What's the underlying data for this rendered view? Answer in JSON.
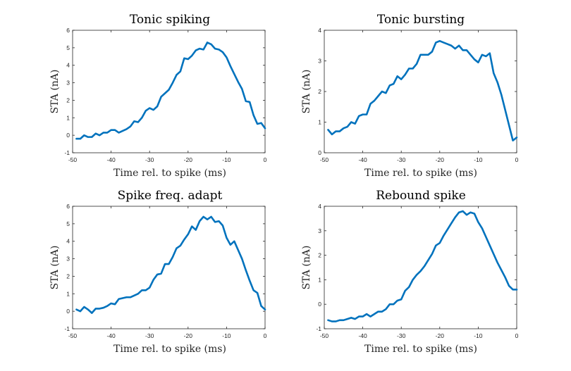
{
  "colors": {
    "line": "#0072BD",
    "axes": "#262626",
    "background": "#ffffff"
  },
  "chart_data": [
    {
      "type": "line",
      "title": "Tonic spiking",
      "xlabel": "Time rel. to spike (ms)",
      "ylabel": "STA (nA)",
      "xlim": [
        -50,
        0
      ],
      "ylim": [
        -1,
        6
      ],
      "xticks": [
        -50,
        -40,
        -30,
        -20,
        -10,
        0
      ],
      "yticks": [
        -1,
        0,
        1,
        2,
        3,
        4,
        5,
        6
      ],
      "grid": false,
      "x": [
        -49,
        -48,
        -47,
        -46,
        -45,
        -44,
        -43,
        -42,
        -41,
        -40,
        -39,
        -38,
        -37,
        -36,
        -35,
        -34,
        -33,
        -32,
        -31,
        -30,
        -29,
        -28,
        -27,
        -26,
        -25,
        -24,
        -23,
        -22,
        -21,
        -20,
        -19,
        -18,
        -17,
        -16,
        -15,
        -14,
        -13,
        -12,
        -11,
        -10,
        -9,
        -8,
        -7,
        -6,
        -5,
        -4,
        -3,
        -2,
        -1,
        0
      ],
      "y": [
        -0.2,
        -0.2,
        0.0,
        -0.1,
        -0.1,
        0.1,
        0.0,
        0.15,
        0.15,
        0.3,
        0.3,
        0.15,
        0.25,
        0.35,
        0.5,
        0.8,
        0.75,
        1.0,
        1.4,
        1.55,
        1.45,
        1.65,
        2.2,
        2.4,
        2.6,
        3.0,
        3.45,
        3.65,
        4.4,
        4.35,
        4.55,
        4.85,
        4.95,
        4.9,
        5.3,
        5.2,
        4.95,
        4.9,
        4.75,
        4.45,
        3.95,
        3.5,
        3.05,
        2.65,
        1.95,
        1.9,
        1.15,
        0.65,
        0.7,
        0.4
      ]
    },
    {
      "type": "line",
      "title": "Tonic bursting",
      "xlabel": "Time rel. to spike (ms)",
      "ylabel": "STA (nA)",
      "xlim": [
        -50,
        0
      ],
      "ylim": [
        0,
        4
      ],
      "xticks": [
        -50,
        -40,
        -30,
        -20,
        -10,
        0
      ],
      "yticks": [
        0,
        1,
        2,
        3,
        4
      ],
      "grid": false,
      "x": [
        -49,
        -48,
        -47,
        -46,
        -45,
        -44,
        -43,
        -42,
        -41,
        -40,
        -39,
        -38,
        -37,
        -36,
        -35,
        -34,
        -33,
        -32,
        -31,
        -30,
        -29,
        -28,
        -27,
        -26,
        -25,
        -24,
        -23,
        -22,
        -21,
        -20,
        -19,
        -18,
        -17,
        -16,
        -15,
        -14,
        -13,
        -12,
        -11,
        -10,
        -9,
        -8,
        -7,
        -6,
        -5,
        -4,
        -3,
        -2,
        -1,
        0
      ],
      "y": [
        0.75,
        0.6,
        0.7,
        0.7,
        0.8,
        0.85,
        1.0,
        0.95,
        1.2,
        1.25,
        1.25,
        1.6,
        1.7,
        1.85,
        2.0,
        1.95,
        2.2,
        2.25,
        2.5,
        2.4,
        2.55,
        2.75,
        2.75,
        2.9,
        3.2,
        3.2,
        3.2,
        3.3,
        3.6,
        3.65,
        3.6,
        3.55,
        3.5,
        3.4,
        3.5,
        3.35,
        3.35,
        3.2,
        3.05,
        2.95,
        3.2,
        3.15,
        3.25,
        2.6,
        2.3,
        1.9,
        1.4,
        0.9,
        0.4,
        0.5
      ]
    },
    {
      "type": "line",
      "title": "Spike freq. adapt",
      "xlabel": "Time rel. to spike (ms)",
      "ylabel": "STA (nA)",
      "xlim": [
        -50,
        0
      ],
      "ylim": [
        -1,
        6
      ],
      "xticks": [
        -50,
        -40,
        -30,
        -20,
        -10,
        0
      ],
      "yticks": [
        -1,
        0,
        1,
        2,
        3,
        4,
        5,
        6
      ],
      "grid": false,
      "x": [
        -49,
        -48,
        -47,
        -46,
        -45,
        -44,
        -43,
        -42,
        -41,
        -40,
        -39,
        -38,
        -37,
        -36,
        -35,
        -34,
        -33,
        -32,
        -31,
        -30,
        -29,
        -28,
        -27,
        -26,
        -25,
        -24,
        -23,
        -22,
        -21,
        -20,
        -19,
        -18,
        -17,
        -16,
        -15,
        -14,
        -13,
        -12,
        -11,
        -10,
        -9,
        -8,
        -7,
        -6,
        -5,
        -4,
        -3,
        -2,
        -1,
        0
      ],
      "y": [
        0.1,
        0.0,
        0.25,
        0.1,
        -0.1,
        0.15,
        0.15,
        0.2,
        0.3,
        0.45,
        0.4,
        0.7,
        0.75,
        0.8,
        0.8,
        0.9,
        1.0,
        1.2,
        1.2,
        1.35,
        1.8,
        2.1,
        2.15,
        2.7,
        2.7,
        3.1,
        3.6,
        3.75,
        4.1,
        4.4,
        4.85,
        4.65,
        5.15,
        5.4,
        5.25,
        5.4,
        5.1,
        5.15,
        4.9,
        4.2,
        3.8,
        4.0,
        3.5,
        3.0,
        2.35,
        1.75,
        1.2,
        1.05,
        0.3,
        0.1
      ]
    },
    {
      "type": "line",
      "title": "Rebound spike",
      "xlabel": "Time rel. to spike (ms)",
      "ylabel": "STA (nA)",
      "xlim": [
        -50,
        0
      ],
      "ylim": [
        -1,
        4
      ],
      "xticks": [
        -50,
        -40,
        -30,
        -20,
        -10,
        0
      ],
      "yticks": [
        -1,
        0,
        1,
        2,
        3,
        4
      ],
      "grid": false,
      "x": [
        -49,
        -48,
        -47,
        -46,
        -45,
        -44,
        -43,
        -42,
        -41,
        -40,
        -39,
        -38,
        -37,
        -36,
        -35,
        -34,
        -33,
        -32,
        -31,
        -30,
        -29,
        -28,
        -27,
        -26,
        -25,
        -24,
        -23,
        -22,
        -21,
        -20,
        -19,
        -18,
        -17,
        -16,
        -15,
        -14,
        -13,
        -12,
        -11,
        -10,
        -9,
        -8,
        -7,
        -6,
        -5,
        -4,
        -3,
        -2,
        -1,
        0
      ],
      "y": [
        -0.65,
        -0.7,
        -0.7,
        -0.65,
        -0.65,
        -0.6,
        -0.55,
        -0.6,
        -0.5,
        -0.5,
        -0.4,
        -0.5,
        -0.4,
        -0.3,
        -0.3,
        -0.2,
        0.0,
        0.0,
        0.15,
        0.2,
        0.55,
        0.7,
        1.0,
        1.2,
        1.35,
        1.55,
        1.8,
        2.05,
        2.4,
        2.5,
        2.8,
        3.05,
        3.3,
        3.55,
        3.75,
        3.8,
        3.65,
        3.75,
        3.7,
        3.35,
        3.1,
        2.75,
        2.4,
        2.05,
        1.7,
        1.4,
        1.1,
        0.75,
        0.6,
        0.6
      ]
    }
  ]
}
